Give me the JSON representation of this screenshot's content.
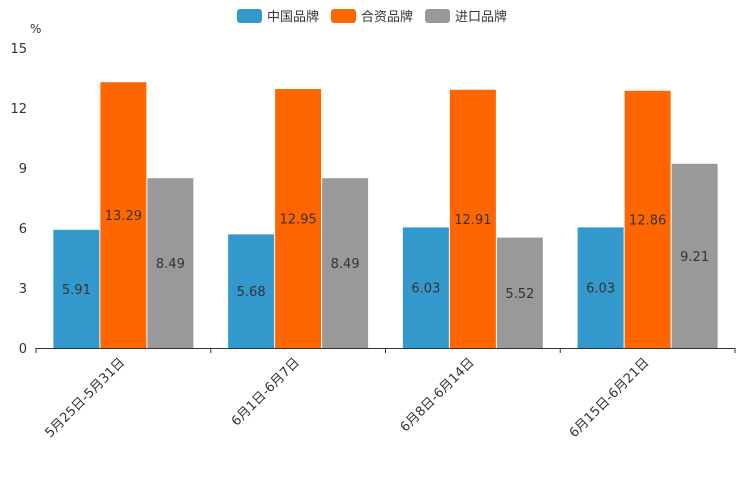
{
  "chart_data": {
    "type": "bar",
    "title": "",
    "xlabel": "",
    "ylabel": "%",
    "ylim": [
      0,
      15
    ],
    "yticks": [
      0,
      3,
      6,
      9,
      12,
      15
    ],
    "grid": false,
    "legend_position": "top-center",
    "categories": [
      "5月25日-5月31日",
      "6月1日-6月7日",
      "6月8日-6月14日",
      "6月15日-6月21日"
    ],
    "series": [
      {
        "name": "中国品牌",
        "color": "#3399cc",
        "values": [
          5.91,
          5.68,
          6.03,
          6.03
        ]
      },
      {
        "name": "合资品牌",
        "color": "#ff6600",
        "values": [
          13.29,
          12.95,
          12.91,
          12.86
        ]
      },
      {
        "name": "进口品牌",
        "color": "#999999",
        "values": [
          8.49,
          8.49,
          5.52,
          9.21
        ]
      }
    ],
    "data_labels": [
      [
        "5.91",
        "5.68",
        "6.03",
        "6.03"
      ],
      [
        "13.29",
        "12.95",
        "12.91",
        "12.86"
      ],
      [
        "8.49",
        "8.49",
        "5.52",
        "9.21"
      ]
    ]
  }
}
